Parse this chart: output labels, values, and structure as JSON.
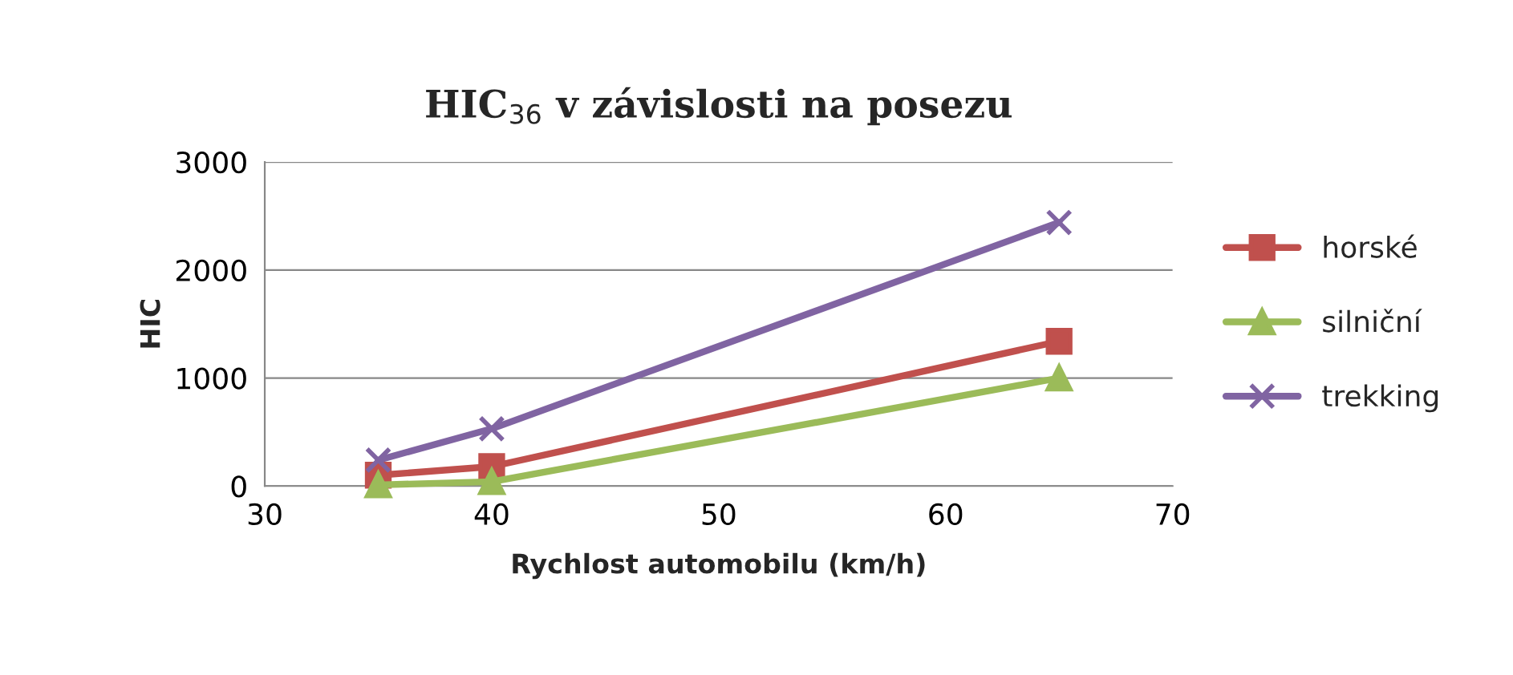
{
  "chart_data": {
    "type": "line",
    "title": "HIC$_{36}$ v závislosti na posezu",
    "xlabel": "Rychlost automobilu (km/h)",
    "ylabel": "HIC",
    "x": [
      35,
      40,
      65
    ],
    "series": [
      {
        "name": "horské",
        "color": "#c0504d",
        "values": [
          100,
          180,
          1340
        ],
        "marker": "square"
      },
      {
        "name": "silniční",
        "color": "#9bbb59",
        "values": [
          10,
          40,
          1000
        ],
        "marker": "triangle"
      },
      {
        "name": "trekking",
        "color": "#8064a2",
        "values": [
          240,
          530,
          2440
        ],
        "marker": "cross"
      }
    ],
    "xlim": [
      30,
      70
    ],
    "xticks": [
      30,
      40,
      50,
      60,
      70
    ],
    "ylim": [
      0,
      3000
    ],
    "yticks": [
      0,
      1000,
      2000,
      3000
    ],
    "grid": "y",
    "legend": "right",
    "line_style": "solid"
  }
}
